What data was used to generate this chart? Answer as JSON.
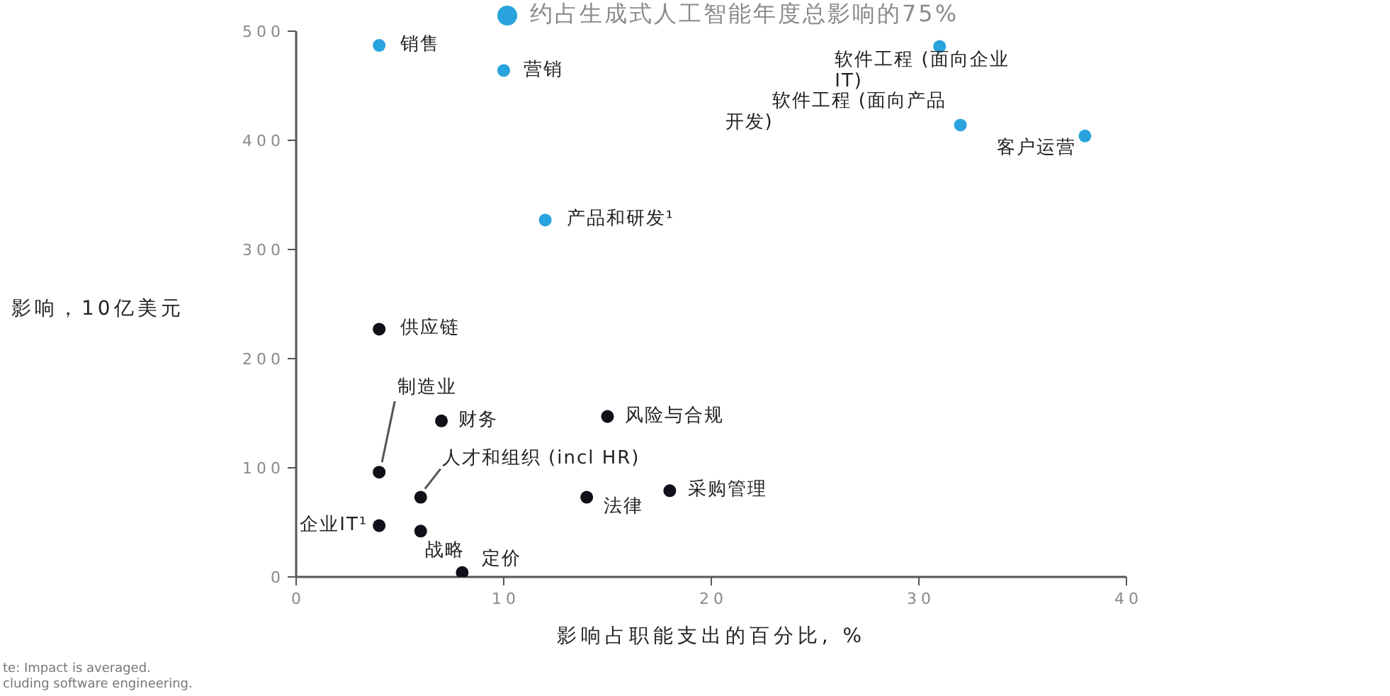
{
  "chart_data": {
    "type": "scatter",
    "xlabel": "影响占职能支出的百分比, %",
    "ylabel": "影响，10亿美元",
    "xlim": [
      0,
      40
    ],
    "xticks": [
      0,
      10,
      20,
      30,
      40
    ],
    "ylim": [
      0,
      500
    ],
    "yticks": [
      0,
      100,
      200,
      300,
      400,
      500
    ],
    "legend": "top",
    "marker": "circle",
    "series": [
      {
        "name": "约占生成式人工智能年度总影响的75%",
        "color": "#29a3dd",
        "x": [
          4,
          10,
          31,
          32,
          38,
          12
        ],
        "values": [
          487,
          464,
          486,
          414,
          404,
          327
        ]
      },
      {
        "color": "#101018",
        "x": [
          4,
          4,
          7,
          15,
          6,
          14,
          18,
          4,
          6,
          8
        ],
        "values": [
          227,
          96,
          143,
          147,
          73,
          73,
          79,
          47,
          42,
          4
        ]
      }
    ],
    "annotations": [
      {
        "text": "销售",
        "x": 4,
        "y": 487
      },
      {
        "text": "营销",
        "x": 10,
        "y": 464
      },
      {
        "text": "软件工程 (面向企业IT)",
        "x": 31,
        "y": 486
      },
      {
        "text": "软件工程 (面向产品开发)",
        "x": 32,
        "y": 414
      },
      {
        "text": "客户运营",
        "x": 38,
        "y": 404
      },
      {
        "text": "产品和研发¹",
        "x": 12,
        "y": 327
      },
      {
        "text": "供应链",
        "x": 4,
        "y": 227
      },
      {
        "text": "制造业",
        "x": 4,
        "y": 96
      },
      {
        "text": "财务",
        "x": 7,
        "y": 143
      },
      {
        "text": "风险与合规",
        "x": 15,
        "y": 147
      },
      {
        "text": "人才和组织 (incl HR)",
        "x": 6,
        "y": 73
      },
      {
        "text": "法律",
        "x": 14,
        "y": 73
      },
      {
        "text": "采购管理",
        "x": 18,
        "y": 79
      },
      {
        "text": "企业IT¹",
        "x": 4,
        "y": 47
      },
      {
        "text": "战略",
        "x": 6,
        "y": 42
      },
      {
        "text": "定价",
        "x": 8,
        "y": 4
      },
      "te: Impact is averaged.",
      "cluding software engineering."
    ]
  }
}
